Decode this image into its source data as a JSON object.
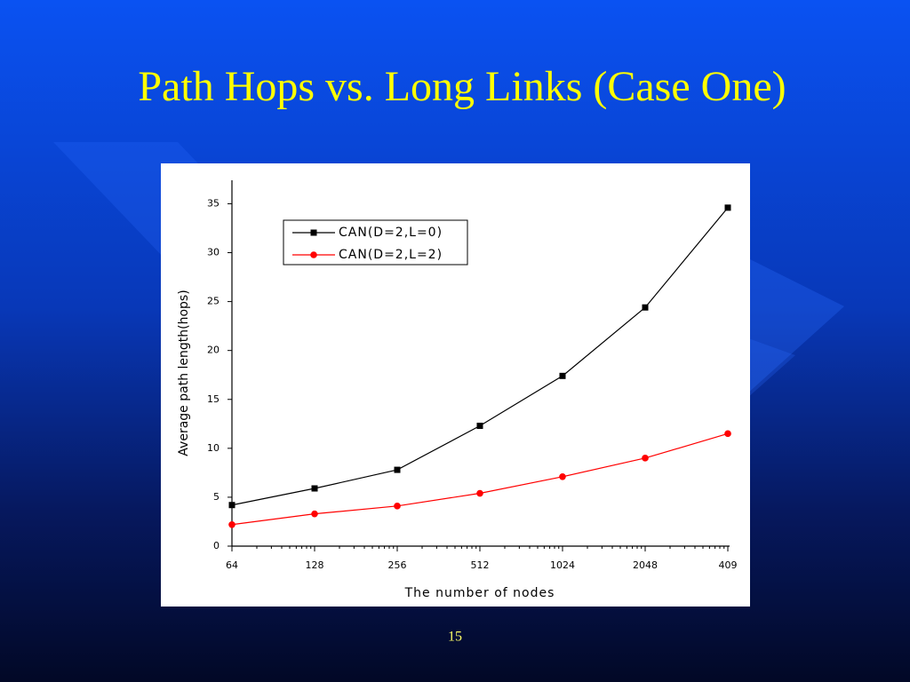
{
  "slide": {
    "title": "Path Hops vs. Long Links (Case One)",
    "page_number": "15"
  },
  "chart_data": {
    "type": "line",
    "x_label": "The number of nodes",
    "y_label": "Average path length(hops)",
    "categories": [
      "64",
      "128",
      "256",
      "512",
      "1024",
      "2048",
      "409"
    ],
    "series": [
      {
        "name": "CAN(D=2,L=0)",
        "color": "#000000",
        "marker": "square",
        "values": [
          4.2,
          5.9,
          7.8,
          12.3,
          17.4,
          24.4,
          34.6
        ]
      },
      {
        "name": "CAN(D=2,L=2)",
        "color": "#ff0000",
        "marker": "circle",
        "values": [
          2.2,
          3.3,
          4.1,
          5.4,
          7.1,
          9.0,
          11.5
        ]
      }
    ],
    "ylim": [
      0,
      37.4
    ],
    "yticks": [
      0,
      5,
      10,
      15,
      20,
      25,
      30,
      35
    ],
    "legend": "upper left",
    "grid": false
  }
}
